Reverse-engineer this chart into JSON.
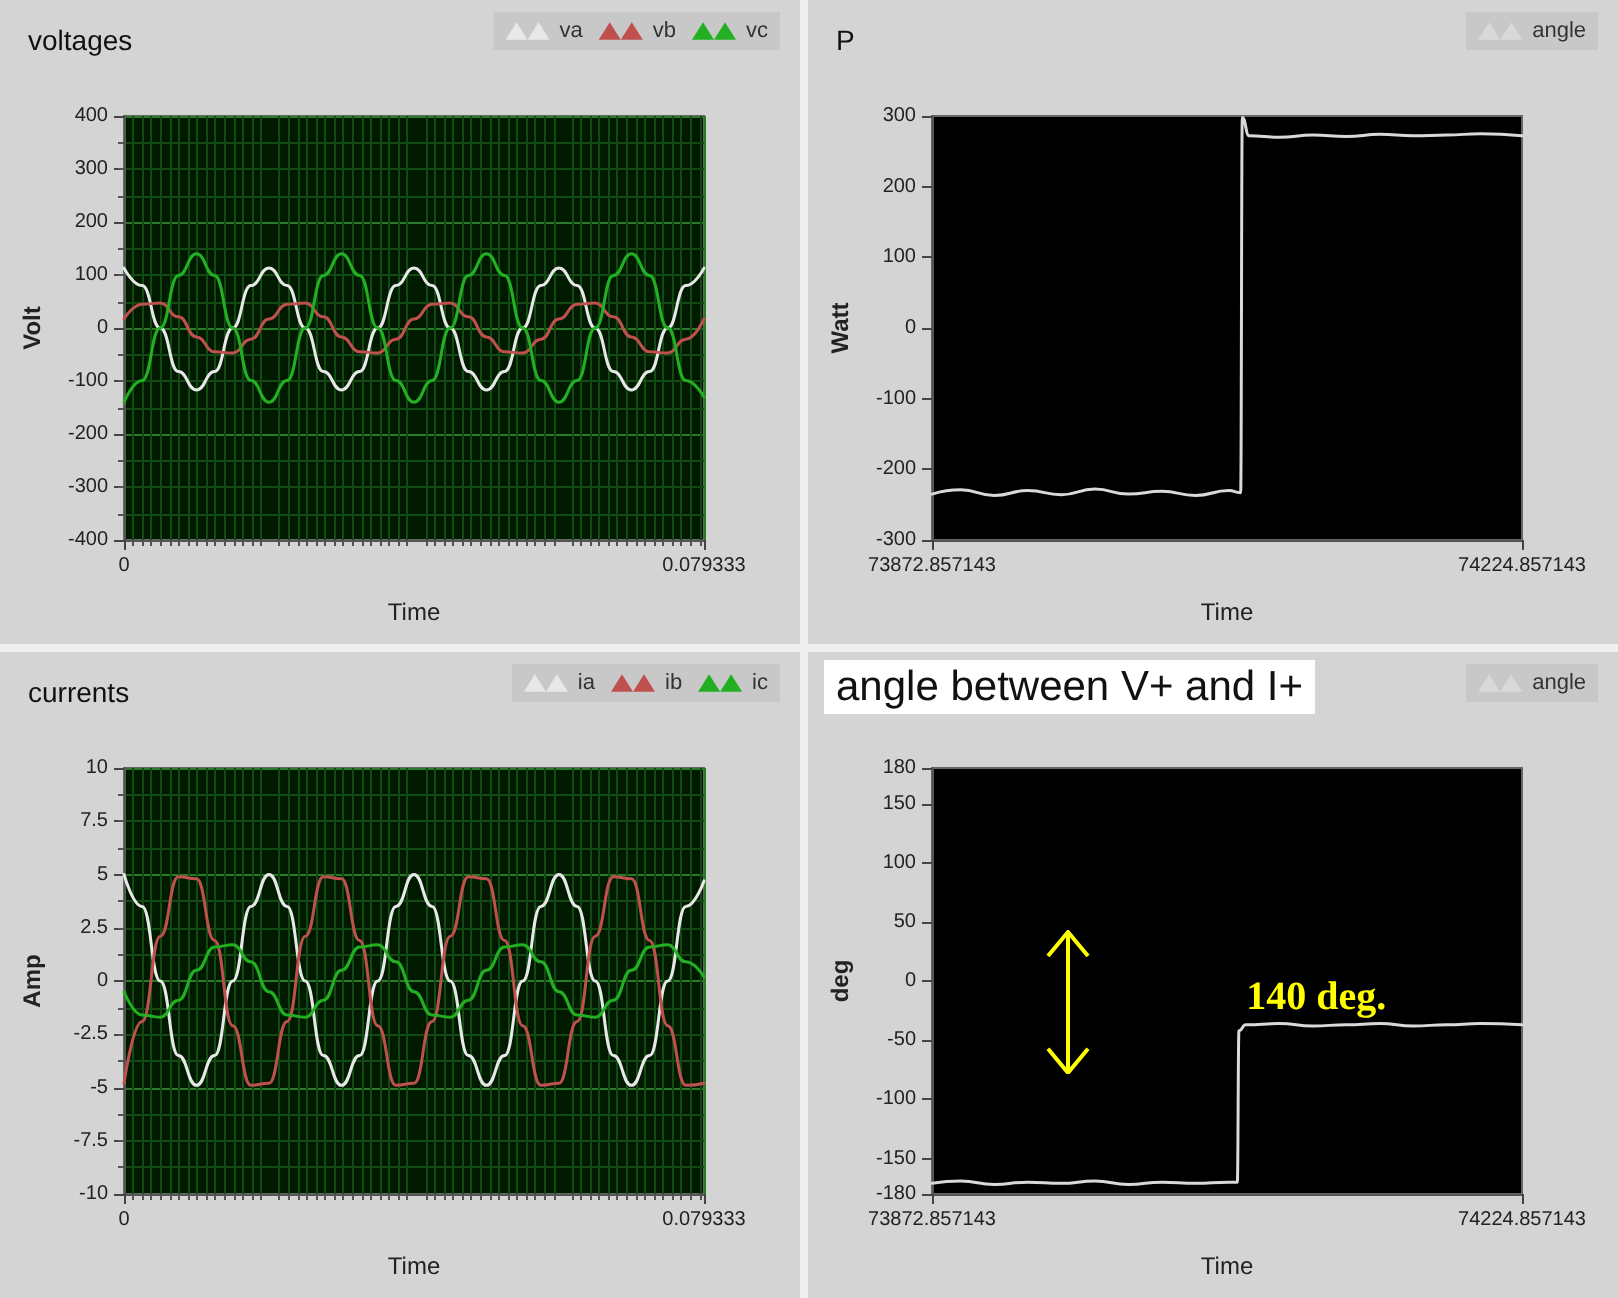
{
  "chart_data": [
    {
      "type": "line",
      "title": "voltages",
      "xlabel": "Time",
      "ylabel": "Volt",
      "legend": "top right",
      "grid": true,
      "x": [
        0,
        0.002479,
        0.004958,
        0.007437,
        0.009916,
        0.012395,
        0.014874,
        0.017353,
        0.019832,
        0.022311,
        0.02479,
        0.027269,
        0.029748,
        0.032227,
        0.034706,
        0.037185,
        0.039664,
        0.042143,
        0.044622,
        0.047101,
        0.04958,
        0.052059,
        0.054538,
        0.057017,
        0.059496,
        0.061975,
        0.064454,
        0.066933,
        0.069412,
        0.071891,
        0.07437,
        0.076849,
        0.079333
      ],
      "series": [
        {
          "name": "va",
          "color": "#e8e8e8",
          "values": [
            113,
            80,
            0,
            -82,
            -117,
            -82,
            0,
            80,
            113,
            80,
            0,
            -82,
            -117,
            -82,
            0,
            80,
            113,
            80,
            0,
            -82,
            -117,
            -82,
            0,
            80,
            113,
            80,
            0,
            -82,
            -117,
            -82,
            0,
            80,
            113
          ]
        },
        {
          "name": "vb",
          "color": "#c0504d",
          "values": [
            17,
            45,
            47,
            21,
            -17,
            -45,
            -47,
            -21,
            17,
            45,
            47,
            21,
            -17,
            -45,
            -47,
            -21,
            17,
            45,
            47,
            21,
            -17,
            -45,
            -47,
            -21,
            17,
            45,
            47,
            21,
            -17,
            -45,
            -47,
            -21,
            17
          ]
        },
        {
          "name": "vc",
          "color": "#22b022",
          "values": [
            -140,
            -99,
            0,
            99,
            140,
            99,
            0,
            -99,
            -140,
            -99,
            0,
            99,
            140,
            99,
            0,
            -99,
            -140,
            -99,
            0,
            99,
            140,
            99,
            0,
            -99,
            -140,
            -99,
            0,
            99,
            140,
            99,
            0,
            -99,
            -130
          ]
        }
      ],
      "xlim": [
        0,
        0.079333
      ],
      "xticks": [
        0,
        0.079333
      ],
      "ylim": [
        -400,
        400
      ],
      "yticks": [
        -400,
        -300,
        -200,
        -100,
        0,
        100,
        200,
        300,
        400
      ]
    },
    {
      "type": "line",
      "title": "P",
      "xlabel": "Time",
      "ylabel": "Watt",
      "legend": "top right",
      "x": [
        73872.857143,
        73890,
        73910,
        73930,
        73950,
        73970,
        73990,
        74010,
        74030,
        74050,
        74057,
        74058,
        74062,
        74080,
        74100,
        74120,
        74140,
        74160,
        74180,
        74200,
        74224.857143
      ],
      "series": [
        {
          "name": "angle",
          "color": "#d9d9d9",
          "values": [
            -235,
            -229,
            -237,
            -230,
            -236,
            -228,
            -235,
            -231,
            -237,
            -230,
            -233,
            298,
            272,
            270,
            273,
            271,
            274,
            272,
            273,
            275,
            272
          ]
        }
      ],
      "xlim": [
        73872.857143,
        74224.857143
      ],
      "xticks": [
        73872.857143,
        74224.857143
      ],
      "ylim": [
        -300,
        300
      ],
      "yticks": [
        -300,
        -200,
        -100,
        0,
        100,
        200,
        300
      ]
    },
    {
      "type": "line",
      "title": "currents",
      "xlabel": "Time",
      "ylabel": "Amp",
      "legend": "top right",
      "grid": true,
      "x": [
        0,
        0.002479,
        0.004958,
        0.007437,
        0.009916,
        0.012395,
        0.014874,
        0.017353,
        0.019832,
        0.022311,
        0.02479,
        0.027269,
        0.029748,
        0.032227,
        0.034706,
        0.037185,
        0.039664,
        0.042143,
        0.044622,
        0.047101,
        0.04958,
        0.052059,
        0.054538,
        0.057017,
        0.059496,
        0.061975,
        0.064454,
        0.066933,
        0.069412,
        0.071891,
        0.07437,
        0.076849,
        0.079333
      ],
      "series": [
        {
          "name": "ia",
          "color": "#e8e8e8",
          "values": [
            5,
            3.5,
            0,
            -3.5,
            -4.9,
            -3.5,
            0,
            3.5,
            5,
            3.5,
            0,
            -3.5,
            -4.9,
            -3.5,
            0,
            3.5,
            5,
            3.5,
            0,
            -3.5,
            -4.9,
            -3.5,
            0,
            3.5,
            5,
            3.5,
            0,
            -3.5,
            -4.9,
            -3.5,
            0,
            3.5,
            4.7
          ]
        },
        {
          "name": "ib",
          "color": "#c0504d",
          "values": [
            -4.8,
            -1.9,
            2.1,
            4.9,
            4.8,
            1.9,
            -2.1,
            -4.9,
            -4.8,
            -1.9,
            2.1,
            4.9,
            4.8,
            1.9,
            -2.1,
            -4.9,
            -4.8,
            -1.9,
            2.1,
            4.9,
            4.8,
            1.9,
            -2.1,
            -4.9,
            -4.8,
            -1.9,
            2.1,
            4.9,
            4.8,
            1.9,
            -2.1,
            -4.9,
            -4.8
          ]
        },
        {
          "name": "ic",
          "color": "#22b022",
          "values": [
            -0.5,
            -1.6,
            -1.7,
            -0.9,
            0.5,
            1.6,
            1.7,
            0.9,
            -0.5,
            -1.6,
            -1.7,
            -0.9,
            0.5,
            1.6,
            1.7,
            0.9,
            -0.5,
            -1.6,
            -1.7,
            -0.9,
            0.5,
            1.6,
            1.7,
            0.9,
            -0.5,
            -1.6,
            -1.7,
            -0.9,
            0.5,
            1.6,
            1.7,
            0.9,
            0.2
          ]
        }
      ],
      "xlim": [
        0,
        0.079333
      ],
      "xticks": [
        0,
        0.079333
      ],
      "ylim": [
        -10,
        10
      ],
      "yticks": [
        -10,
        -7.5,
        -5,
        -2.5,
        0,
        2.5,
        5,
        7.5,
        10
      ]
    },
    {
      "type": "line",
      "title": "angle between V+ and I+",
      "xlabel": "Time",
      "ylabel": "deg",
      "legend": "top right",
      "x": [
        73872.857143,
        73890,
        73910,
        73930,
        73950,
        73970,
        73990,
        74010,
        74030,
        74050,
        74055,
        74056,
        74060,
        74080,
        74100,
        74120,
        74140,
        74160,
        74180,
        74200,
        74224.857143
      ],
      "series": [
        {
          "name": "angle",
          "color": "#d9d9d9",
          "values": [
            -171,
            -169,
            -172,
            -170,
            -171,
            -169,
            -172,
            -170,
            -171,
            -170,
            -170,
            -42,
            -37,
            -36,
            -38,
            -37,
            -36,
            -38,
            -37,
            -36,
            -37
          ]
        }
      ],
      "annotations": [
        {
          "text": "140 deg.",
          "x": 74058,
          "y": -37
        }
      ],
      "xlim": [
        73872.857143,
        74224.857143
      ],
      "xticks": [
        73872.857143,
        74224.857143
      ],
      "ylim": [
        -180,
        180
      ],
      "yticks": [
        -180,
        -150,
        -100,
        -50,
        0,
        50,
        100,
        150,
        180
      ]
    }
  ]
}
